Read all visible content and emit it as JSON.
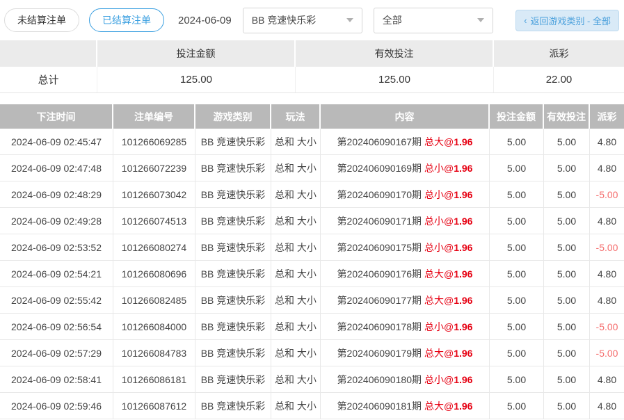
{
  "toolbar": {
    "tab_unsettled": "未结算注单",
    "tab_settled": "已结算注单",
    "date": "2024-06-09",
    "game_select_value": "BB 竞速快乐彩",
    "filter_select_value": "全部",
    "back_chevron": "‹",
    "back_button_label": "返回游戏类别 - 全部"
  },
  "summary": {
    "col_bet": "投注金额",
    "col_valid": "有效投注",
    "col_payout": "派彩",
    "total_label": "总计",
    "total_bet": "125.00",
    "total_valid": "125.00",
    "total_payout": "22.00"
  },
  "table": {
    "headers": {
      "time": "下注时间",
      "order": "注单编号",
      "game": "游戏类别",
      "play": "玩法",
      "content": "内容",
      "bet": "投注金额",
      "valid": "有效投注",
      "payout": "派彩"
    },
    "at_symbol": "@",
    "rows": [
      {
        "time": "2024-06-09 02:45:47",
        "order": "101266069285",
        "game": "BB 竞速快乐彩",
        "play": "总和 大小",
        "period": "第202406090167期",
        "pick": "总大",
        "odds": "1.96",
        "bet": "5.00",
        "valid": "5.00",
        "payout": "4.80"
      },
      {
        "time": "2024-06-09 02:47:48",
        "order": "101266072239",
        "game": "BB 竞速快乐彩",
        "play": "总和 大小",
        "period": "第202406090169期",
        "pick": "总小",
        "odds": "1.96",
        "bet": "5.00",
        "valid": "5.00",
        "payout": "4.80"
      },
      {
        "time": "2024-06-09 02:48:29",
        "order": "101266073042",
        "game": "BB 竞速快乐彩",
        "play": "总和 大小",
        "period": "第202406090170期",
        "pick": "总小",
        "odds": "1.96",
        "bet": "5.00",
        "valid": "5.00",
        "payout": "-5.00"
      },
      {
        "time": "2024-06-09 02:49:28",
        "order": "101266074513",
        "game": "BB 竞速快乐彩",
        "play": "总和 大小",
        "period": "第202406090171期",
        "pick": "总小",
        "odds": "1.96",
        "bet": "5.00",
        "valid": "5.00",
        "payout": "4.80"
      },
      {
        "time": "2024-06-09 02:53:52",
        "order": "101266080274",
        "game": "BB 竞速快乐彩",
        "play": "总和 大小",
        "period": "第202406090175期",
        "pick": "总小",
        "odds": "1.96",
        "bet": "5.00",
        "valid": "5.00",
        "payout": "-5.00"
      },
      {
        "time": "2024-06-09 02:54:21",
        "order": "101266080696",
        "game": "BB 竞速快乐彩",
        "play": "总和 大小",
        "period": "第202406090176期",
        "pick": "总大",
        "odds": "1.96",
        "bet": "5.00",
        "valid": "5.00",
        "payout": "4.80"
      },
      {
        "time": "2024-06-09 02:55:42",
        "order": "101266082485",
        "game": "BB 竞速快乐彩",
        "play": "总和 大小",
        "period": "第202406090177期",
        "pick": "总大",
        "odds": "1.96",
        "bet": "5.00",
        "valid": "5.00",
        "payout": "4.80"
      },
      {
        "time": "2024-06-09 02:56:54",
        "order": "101266084000",
        "game": "BB 竞速快乐彩",
        "play": "总和 大小",
        "period": "第202406090178期",
        "pick": "总小",
        "odds": "1.96",
        "bet": "5.00",
        "valid": "5.00",
        "payout": "-5.00"
      },
      {
        "time": "2024-06-09 02:57:29",
        "order": "101266084783",
        "game": "BB 竞速快乐彩",
        "play": "总和 大小",
        "period": "第202406090179期",
        "pick": "总大",
        "odds": "1.96",
        "bet": "5.00",
        "valid": "5.00",
        "payout": "-5.00"
      },
      {
        "time": "2024-06-09 02:58:41",
        "order": "101266086181",
        "game": "BB 竞速快乐彩",
        "play": "总和 大小",
        "period": "第202406090180期",
        "pick": "总小",
        "odds": "1.96",
        "bet": "5.00",
        "valid": "5.00",
        "payout": "4.80"
      },
      {
        "time": "2024-06-09 02:59:46",
        "order": "101266087612",
        "game": "BB 竞速快乐彩",
        "play": "总和 大小",
        "period": "第202406090181期",
        "pick": "总大",
        "odds": "1.96",
        "bet": "5.00",
        "valid": "5.00",
        "payout": "4.80"
      }
    ]
  },
  "colors": {
    "accent_blue": "#3a9fe0",
    "back_button_bg": "#d9eaf7",
    "content_red": "#e60012",
    "negative_red": "#f56c6c",
    "table_header_gray": "#b9b9b9",
    "summary_header_gray": "#ebebeb"
  }
}
